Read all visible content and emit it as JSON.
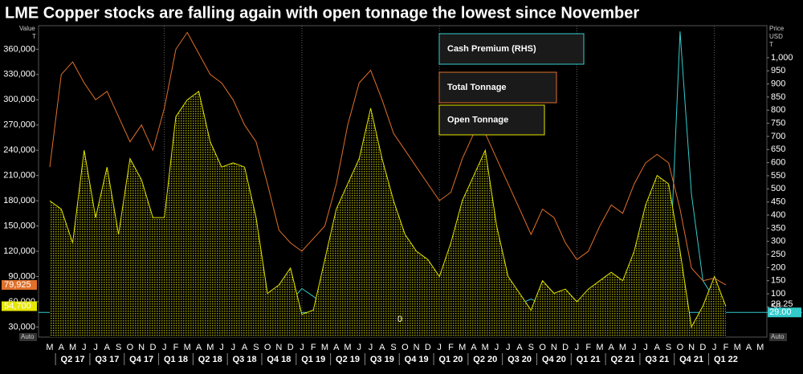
{
  "chart_data": {
    "type": "line",
    "title": "LME Copper stocks are falling again with open tonnage the lowest since November",
    "y_axis_label": [
      "Value",
      "T"
    ],
    "y2_axis_label": [
      "Price",
      "USD",
      "T"
    ],
    "categories": [
      "M",
      "A",
      "M",
      "J",
      "J",
      "A",
      "S",
      "O",
      "N",
      "D",
      "J",
      "F",
      "M",
      "A",
      "M",
      "J",
      "J",
      "A",
      "S",
      "O",
      "N",
      "D",
      "J",
      "F",
      "M",
      "A",
      "M",
      "J",
      "J",
      "A",
      "S",
      "O",
      "N",
      "D",
      "J",
      "F",
      "M",
      "A",
      "M",
      "J",
      "J",
      "A",
      "S",
      "O",
      "N",
      "D",
      "J",
      "F",
      "M",
      "A",
      "M",
      "J",
      "J",
      "A",
      "S",
      "O",
      "N",
      "D",
      "J",
      "F",
      "M",
      "A",
      "M"
    ],
    "quarters": [
      "Q2 17",
      "Q3 17",
      "Q4 17",
      "Q1 18",
      "Q2 18",
      "Q3 18",
      "Q4 18",
      "Q1 19",
      "Q2 19",
      "Q3 19",
      "Q4 19",
      "Q1 20",
      "Q2 20",
      "Q3 20",
      "Q4 20",
      "Q1 21",
      "Q2 21",
      "Q3 21",
      "Q4 21",
      "Q1 22"
    ],
    "ylim": [
      18000,
      388000
    ],
    "yticks": [
      {
        "value": 30000,
        "label": "30,000"
      },
      {
        "value": 60000,
        "label": "60,000"
      },
      {
        "value": 90000,
        "label": "90,000"
      },
      {
        "value": 120000,
        "label": "120,000"
      },
      {
        "value": 150000,
        "label": "150,000"
      },
      {
        "value": 180000,
        "label": "180,000"
      },
      {
        "value": 210000,
        "label": "210,000"
      },
      {
        "value": 240000,
        "label": "240,000"
      },
      {
        "value": 270000,
        "label": "270,000"
      },
      {
        "value": 300000,
        "label": "300,000"
      },
      {
        "value": 330000,
        "label": "330,000"
      },
      {
        "value": 360000,
        "label": "360,000"
      }
    ],
    "y2lim": [
      -65,
      1122
    ],
    "y2ticks": [
      50,
      100,
      150,
      200,
      250,
      300,
      350,
      400,
      450,
      500,
      550,
      600,
      650,
      700,
      750,
      800,
      850,
      900,
      950,
      {
        "value": 1000,
        "label": "1,000"
      }
    ],
    "series": [
      {
        "name": "Cash Premium (RHS)",
        "color": "#33cccc",
        "axis": "y2",
        "values": [
          30,
          25,
          30,
          25,
          20,
          25,
          20,
          30,
          25,
          20,
          30,
          35,
          40,
          45,
          40,
          50,
          45,
          40,
          45,
          60,
          80,
          70,
          120,
          90,
          60,
          40,
          40,
          30,
          25,
          30,
          35,
          40,
          30,
          25,
          30,
          35,
          40,
          30,
          20,
          25,
          40,
          60,
          80,
          60,
          50,
          60,
          70,
          60,
          50,
          40,
          35,
          45,
          40,
          50,
          80,
          1100,
          480,
          150,
          80,
          29.25,
          null,
          null,
          null
        ],
        "value_labels": [
          null,
          null,
          null,
          null,
          null,
          null,
          null,
          null,
          null,
          null,
          null,
          null,
          null,
          null,
          null,
          null,
          null,
          null,
          null,
          null,
          null,
          null,
          null,
          null,
          null,
          null,
          null,
          null,
          null,
          null,
          null,
          null,
          null,
          null,
          null,
          null,
          null,
          null,
          null,
          null,
          null,
          null,
          null,
          null,
          null,
          null,
          null,
          null,
          null,
          null,
          null,
          null,
          null,
          null,
          null,
          null,
          null,
          null,
          null,
          "29.25",
          null,
          null,
          null
        ]
      },
      {
        "name": "Total Tonnage",
        "color": "#e0702a",
        "values": [
          220000,
          330000,
          345000,
          320000,
          300000,
          310000,
          280000,
          250000,
          270000,
          240000,
          290000,
          360000,
          380000,
          355000,
          330000,
          320000,
          300000,
          270000,
          250000,
          200000,
          145000,
          130000,
          120000,
          135000,
          150000,
          200000,
          270000,
          320000,
          335000,
          300000,
          260000,
          240000,
          220000,
          200000,
          180000,
          190000,
          230000,
          260000,
          260000,
          230000,
          200000,
          170000,
          140000,
          170000,
          160000,
          130000,
          110000,
          120000,
          150000,
          175000,
          165000,
          200000,
          225000,
          235000,
          225000,
          170000,
          100000,
          85000,
          88000,
          79925,
          null,
          null,
          null
        ],
        "value_labels": [
          null,
          null,
          null,
          null,
          null,
          null,
          null,
          null,
          null,
          null,
          null,
          null,
          null,
          null,
          null,
          null,
          null,
          null,
          null,
          null,
          null,
          null,
          null,
          null,
          null,
          null,
          null,
          null,
          null,
          null,
          null,
          null,
          null,
          null,
          null,
          null,
          null,
          null,
          null,
          null,
          null,
          null,
          null,
          null,
          null,
          null,
          null,
          null,
          null,
          null,
          null,
          null,
          null,
          null,
          null,
          null,
          null,
          null,
          null,
          "79,925",
          null,
          null,
          null
        ]
      },
      {
        "name": "Open Tonnage",
        "color": "#e6e600",
        "fill": true,
        "values": [
          180000,
          170000,
          130000,
          240000,
          160000,
          220000,
          140000,
          230000,
          205000,
          160000,
          160000,
          280000,
          300000,
          310000,
          250000,
          220000,
          225000,
          220000,
          160000,
          70000,
          80000,
          100000,
          45000,
          50000,
          110000,
          170000,
          200000,
          230000,
          290000,
          230000,
          180000,
          140000,
          120000,
          110000,
          90000,
          130000,
          180000,
          210000,
          240000,
          150000,
          90000,
          70000,
          50000,
          85000,
          70000,
          75000,
          60000,
          75000,
          85000,
          95000,
          85000,
          120000,
          175000,
          210000,
          200000,
          120000,
          30000,
          55000,
          90000,
          54700,
          null,
          null,
          null
        ],
        "value_labels": [
          null,
          null,
          null,
          null,
          null,
          null,
          null,
          null,
          null,
          null,
          null,
          null,
          null,
          null,
          null,
          null,
          null,
          null,
          null,
          null,
          null,
          null,
          null,
          null,
          null,
          null,
          null,
          null,
          null,
          null,
          null,
          null,
          null,
          null,
          null,
          null,
          null,
          null,
          null,
          null,
          null,
          null,
          null,
          null,
          null,
          null,
          null,
          null,
          null,
          null,
          null,
          null,
          null,
          null,
          null,
          null,
          null,
          null,
          null,
          "54,700",
          null,
          null,
          null
        ]
      }
    ],
    "reference": {
      "value": 29,
      "label": "29.00",
      "axis": "y2"
    },
    "annotation": "0",
    "scale_mode": "Auto"
  }
}
